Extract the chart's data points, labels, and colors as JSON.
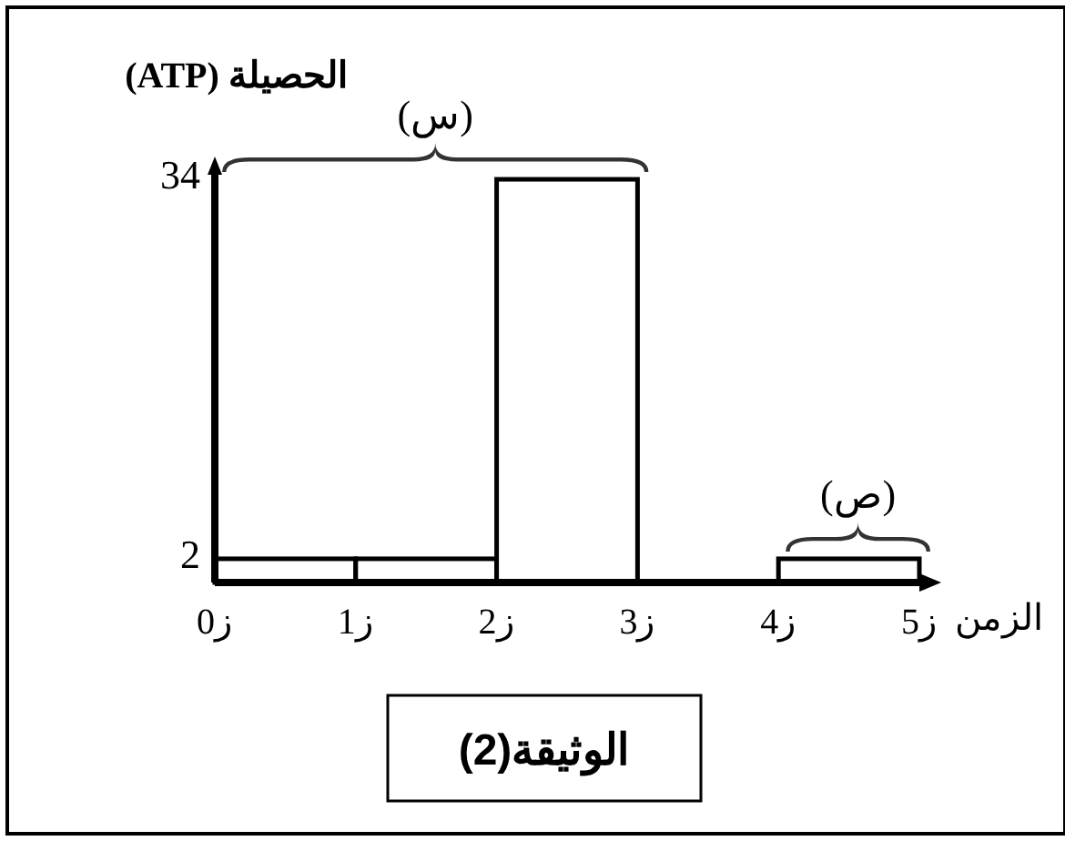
{
  "chart_data": {
    "type": "bar",
    "title": "الوثيقة(2)",
    "xlabel": "الزمن",
    "ylabel": "الحصيلة (ATP)",
    "categories": [
      null,
      null,
      null,
      null,
      null
    ],
    "values": [
      2,
      2,
      34,
      0,
      2
    ],
    "color": "#ffffff",
    "ylim": [
      0,
      35
    ],
    "yticks": [
      2,
      34
    ],
    "annotations": [
      "(س)",
      "(ص)",
      "ز0",
      "ز1",
      "ز2",
      "ز3",
      "ز4",
      "ز5"
    ]
  }
}
